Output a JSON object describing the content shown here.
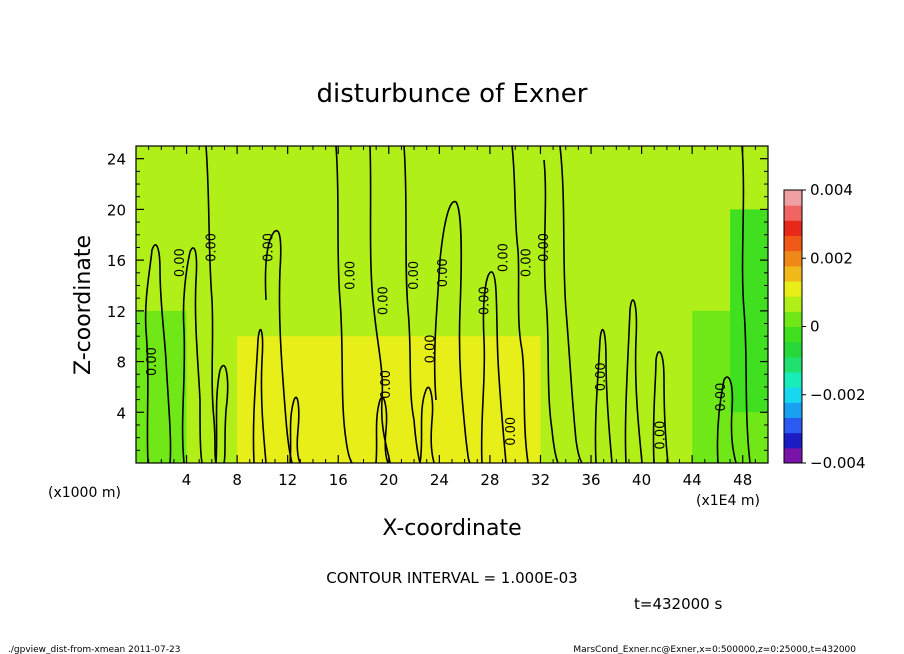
{
  "chart_data": {
    "type": "heatmap",
    "title": "disturbunce of Exner",
    "xlabel": "X-coordinate",
    "ylabel": "Z-coordinate",
    "x_unit": "(x1E4 m)",
    "y_unit": "(x1000 m)",
    "xlim": [
      0,
      50
    ],
    "ylim": [
      0,
      25
    ],
    "x_ticks": [
      4,
      8,
      12,
      16,
      20,
      24,
      28,
      32,
      36,
      40,
      44,
      48
    ],
    "y_ticks": [
      4,
      8,
      12,
      16,
      20,
      24
    ],
    "contour_interval_text": "CONTOUR INTERVAL = 1.000E-03",
    "time_text": "t=432000 s",
    "colorbar": {
      "range": [
        -0.004,
        0.004
      ],
      "tick_values": [
        0.004,
        0.002,
        0,
        -0.002,
        -0.004
      ],
      "tick_labels": [
        "0.004",
        "0.002",
        "0",
        "−0.002",
        "−0.004"
      ],
      "colors": [
        "#7a14a8",
        "#1c1cc4",
        "#2a5af0",
        "#1aa0f0",
        "#18d8f0",
        "#18ecb8",
        "#20e070",
        "#28d838",
        "#40e020",
        "#70e818",
        "#b0f018",
        "#e8ee18",
        "#f0b818",
        "#f08818",
        "#f05818",
        "#e82818",
        "#f06464",
        "#f0a0a0"
      ]
    },
    "contour_labels": [
      {
        "text": "0.00",
        "x": 1.6,
        "z": 8.0
      },
      {
        "text": "0.00",
        "x": 3.8,
        "z": 15.8
      },
      {
        "text": "0.00",
        "x": 6.3,
        "z": 17.0
      },
      {
        "text": "0.00",
        "x": 10.8,
        "z": 17.0
      },
      {
        "text": "0.00",
        "x": 17.3,
        "z": 14.8
      },
      {
        "text": "0.00",
        "x": 19.9,
        "z": 12.8
      },
      {
        "text": "0.00",
        "x": 22.3,
        "z": 14.8
      },
      {
        "text": "0.00",
        "x": 24.6,
        "z": 15.0
      },
      {
        "text": "0.00",
        "x": 27.9,
        "z": 12.8
      },
      {
        "text": "0.00",
        "x": 29.4,
        "z": 16.2
      },
      {
        "text": "0.00",
        "x": 31.2,
        "z": 15.8
      },
      {
        "text": "0.00",
        "x": 32.6,
        "z": 17.0
      },
      {
        "text": "0.00",
        "x": 23.6,
        "z": 9.0
      },
      {
        "text": "0.00",
        "x": 20.1,
        "z": 6.2
      },
      {
        "text": "0.00",
        "x": 30.0,
        "z": 2.5
      },
      {
        "text": "0.00",
        "x": 37.1,
        "z": 6.8
      },
      {
        "text": "0.00",
        "x": 41.8,
        "z": 2.2
      },
      {
        "text": "0.00",
        "x": 46.6,
        "z": 5.2
      }
    ],
    "field_regions": [
      {
        "x0": 0,
        "x1": 50,
        "z0": 0,
        "z1": 25,
        "value": 0.0006
      },
      {
        "x0": 0,
        "x1": 16,
        "z0": 10,
        "z1": 25,
        "value": 0.0007
      },
      {
        "x0": 30,
        "x1": 50,
        "z0": 0,
        "z1": 25,
        "value": 0.0005
      },
      {
        "x0": 0,
        "x1": 4,
        "z0": 0,
        "z1": 12,
        "value": 0.0001
      },
      {
        "x0": 44,
        "x1": 50,
        "z0": 0,
        "z1": 12,
        "value": 0.0001
      },
      {
        "x0": 47,
        "x1": 50,
        "z0": 4,
        "z1": 20,
        "value": -0.0004
      },
      {
        "x0": 8,
        "x1": 32,
        "z0": 0,
        "z1": 10,
        "value": 0.0009
      }
    ]
  },
  "footer": {
    "left": "./gpview_dist-from-xmean  2011-07-23",
    "right": "MarsCond_Exner.nc@Exner,x=0:500000,z=0:25000,t=432000"
  }
}
